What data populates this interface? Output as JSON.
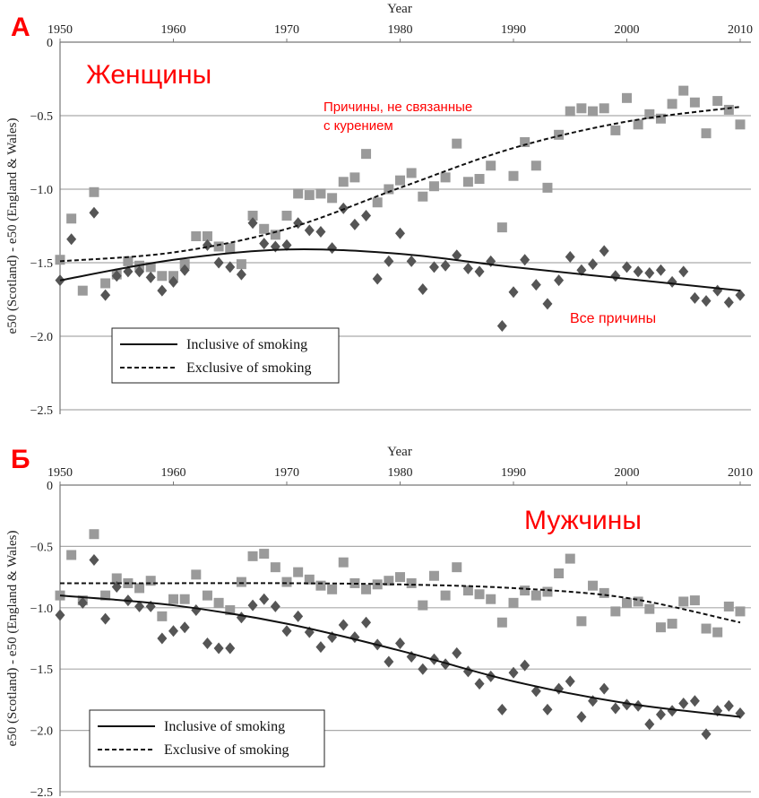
{
  "colors": {
    "squares": "#9a9a9a",
    "diamonds": "#555555",
    "grid": "#aaaaaa",
    "annotation": "#ff0000"
  },
  "chart_data": [
    {
      "type": "scatter",
      "panel_letter": "А",
      "title": "Женщины",
      "xlabel": "Year",
      "ylabel": "e50 (Scotland) - e50 (England & Wales)",
      "xlim": [
        1950,
        2010
      ],
      "ylim": [
        -2.5,
        0
      ],
      "xticks": [
        "1950",
        "1960",
        "1970",
        "1980",
        "1990",
        "2000",
        "2010"
      ],
      "yticks": [
        "0",
        "−0.5",
        "−1.0",
        "−1.5",
        "−2.0",
        "−2.5"
      ],
      "grid": "horizontal",
      "legend": {
        "placement": "bottom-left",
        "entries": [
          "Inclusive of smoking",
          "Exclusive of smoking"
        ]
      },
      "annotations": {
        "exclusive": [
          "Причины, не связанные",
          "с курением"
        ],
        "inclusive": "Все причины"
      },
      "x": [
        1950,
        1951,
        1952,
        1953,
        1954,
        1955,
        1956,
        1957,
        1958,
        1959,
        1960,
        1961,
        1962,
        1963,
        1964,
        1965,
        1966,
        1967,
        1968,
        1969,
        1970,
        1971,
        1972,
        1973,
        1974,
        1975,
        1976,
        1977,
        1978,
        1979,
        1980,
        1981,
        1982,
        1983,
        1984,
        1985,
        1986,
        1987,
        1988,
        1989,
        1990,
        1991,
        1992,
        1993,
        1994,
        1995,
        1996,
        1997,
        1998,
        1999,
        2000,
        2001,
        2002,
        2003,
        2004,
        2005,
        2006,
        2007,
        2008,
        2009,
        2010
      ],
      "series": [
        {
          "marker": "square",
          "values": [
            -1.48,
            -1.2,
            -1.69,
            -1.02,
            -1.64,
            -1.58,
            -1.49,
            -1.52,
            -1.53,
            -1.59,
            -1.59,
            -1.51,
            -1.32,
            -1.32,
            -1.39,
            -1.4,
            -1.51,
            -1.18,
            -1.27,
            -1.31,
            -1.18,
            -1.03,
            -1.04,
            -1.03,
            -1.06,
            -0.95,
            -0.92,
            -0.76,
            -1.09,
            -1.0,
            -0.94,
            -0.89,
            -1.05,
            -0.98,
            -0.92,
            -0.69,
            -0.95,
            -0.93,
            -0.84,
            -1.26,
            -0.91,
            -0.68,
            -0.84,
            -0.99,
            -0.63,
            -0.47,
            -0.45,
            -0.47,
            -0.45,
            -0.6,
            -0.38,
            -0.56,
            -0.49,
            -0.52,
            -0.42,
            -0.33,
            -0.41,
            -0.62,
            -0.4,
            -0.46,
            -0.56
          ]
        },
        {
          "marker": "diamond",
          "values": [
            -1.62,
            -1.34,
            null,
            -1.16,
            -1.72,
            -1.59,
            -1.56,
            -1.56,
            -1.6,
            -1.69,
            -1.63,
            -1.55,
            null,
            -1.38,
            -1.5,
            -1.53,
            -1.58,
            -1.23,
            -1.37,
            -1.39,
            -1.38,
            -1.23,
            -1.28,
            -1.29,
            -1.4,
            -1.13,
            -1.24,
            -1.18,
            -1.61,
            -1.49,
            -1.3,
            -1.49,
            -1.68,
            -1.53,
            -1.52,
            -1.45,
            -1.54,
            -1.56,
            -1.49,
            -1.93,
            -1.7,
            -1.48,
            -1.65,
            -1.78,
            -1.62,
            -1.46,
            -1.55,
            -1.51,
            -1.42,
            -1.59,
            -1.53,
            -1.56,
            -1.57,
            -1.55,
            -1.63,
            -1.56,
            -1.74,
            -1.76,
            -1.69,
            -1.77,
            -1.72
          ]
        }
      ],
      "trend_lines": [
        {
          "name": "Inclusive of smoking",
          "style": "solid",
          "x": [
            1950,
            1960,
            1970,
            1980,
            1990,
            2000,
            2010
          ],
          "values": [
            -1.62,
            -1.48,
            -1.41,
            -1.44,
            -1.53,
            -1.61,
            -1.69
          ]
        },
        {
          "name": "Exclusive of smoking",
          "style": "dashed",
          "x": [
            1950,
            1960,
            1970,
            1980,
            1990,
            2000,
            2010
          ],
          "values": [
            -1.49,
            -1.43,
            -1.27,
            -0.99,
            -0.72,
            -0.54,
            -0.44
          ]
        }
      ]
    },
    {
      "type": "scatter",
      "panel_letter": "Б",
      "title": "Мужчины",
      "xlabel": "Year",
      "ylabel": "e50 (Scotland) - e50 (England & Wales)",
      "xlim": [
        1950,
        2010
      ],
      "ylim": [
        -2.5,
        0
      ],
      "xticks": [
        "1950",
        "1960",
        "1970",
        "1980",
        "1990",
        "2000",
        "2010"
      ],
      "yticks": [
        "0",
        "−0.5",
        "−1.0",
        "−1.5",
        "−2.0",
        "−2.5"
      ],
      "grid": "horizontal",
      "legend": {
        "placement": "bottom-left",
        "entries": [
          "Inclusive of smoking",
          "Exclusive of smoking"
        ]
      },
      "x": [
        1950,
        1951,
        1952,
        1953,
        1954,
        1955,
        1956,
        1957,
        1958,
        1959,
        1960,
        1961,
        1962,
        1963,
        1964,
        1965,
        1966,
        1967,
        1968,
        1969,
        1970,
        1971,
        1972,
        1973,
        1974,
        1975,
        1976,
        1977,
        1978,
        1979,
        1980,
        1981,
        1982,
        1983,
        1984,
        1985,
        1986,
        1987,
        1988,
        1989,
        1990,
        1991,
        1992,
        1993,
        1994,
        1995,
        1996,
        1997,
        1998,
        1999,
        2000,
        2001,
        2002,
        2003,
        2004,
        2005,
        2006,
        2007,
        2008,
        2009,
        2010
      ],
      "series": [
        {
          "marker": "square",
          "values": [
            -0.9,
            -0.57,
            -0.94,
            -0.4,
            -0.9,
            -0.76,
            -0.8,
            -0.84,
            -0.78,
            -1.07,
            -0.93,
            -0.93,
            -0.73,
            -0.9,
            -0.96,
            -1.02,
            -0.79,
            -0.58,
            -0.56,
            -0.67,
            -0.79,
            -0.71,
            -0.77,
            -0.82,
            -0.85,
            -0.63,
            -0.8,
            -0.85,
            -0.81,
            -0.78,
            -0.75,
            -0.8,
            -0.98,
            -0.74,
            -0.9,
            -0.67,
            -0.86,
            -0.89,
            -0.93,
            -1.12,
            -0.96,
            -0.86,
            -0.9,
            -0.87,
            -0.72,
            -0.6,
            -1.11,
            -0.82,
            -0.88,
            -1.03,
            -0.96,
            -0.95,
            -1.01,
            -1.16,
            -1.13,
            -0.95,
            -0.94,
            -1.17,
            -1.2,
            -0.99,
            -1.03
          ]
        },
        {
          "marker": "diamond",
          "values": [
            -1.06,
            null,
            -0.96,
            -0.61,
            -1.09,
            -0.83,
            -0.94,
            -0.99,
            -0.99,
            -1.25,
            -1.19,
            -1.16,
            -1.02,
            -1.29,
            -1.33,
            -1.33,
            -1.08,
            -0.98,
            -0.93,
            -0.99,
            -1.19,
            -1.07,
            -1.2,
            -1.32,
            -1.24,
            -1.14,
            -1.24,
            -1.12,
            -1.3,
            -1.44,
            -1.29,
            -1.4,
            -1.5,
            -1.42,
            -1.46,
            -1.37,
            -1.52,
            -1.62,
            -1.56,
            -1.83,
            -1.53,
            -1.47,
            -1.68,
            -1.83,
            -1.66,
            -1.6,
            -1.89,
            -1.76,
            -1.66,
            -1.82,
            -1.79,
            -1.8,
            -1.95,
            -1.87,
            -1.84,
            -1.78,
            -1.76,
            -2.03,
            -1.84,
            -1.8,
            -1.86
          ]
        }
      ],
      "trend_lines": [
        {
          "name": "Inclusive of smoking",
          "style": "solid",
          "x": [
            1950,
            1960,
            1970,
            1980,
            1990,
            2000,
            2010
          ],
          "values": [
            -0.9,
            -0.98,
            -1.13,
            -1.35,
            -1.6,
            -1.78,
            -1.89
          ]
        },
        {
          "name": "Exclusive of smoking",
          "style": "dashed",
          "x": [
            1950,
            1960,
            1970,
            1980,
            1990,
            2000,
            2010
          ],
          "values": [
            -0.8,
            -0.8,
            -0.8,
            -0.81,
            -0.84,
            -0.92,
            -1.12
          ]
        }
      ]
    }
  ]
}
